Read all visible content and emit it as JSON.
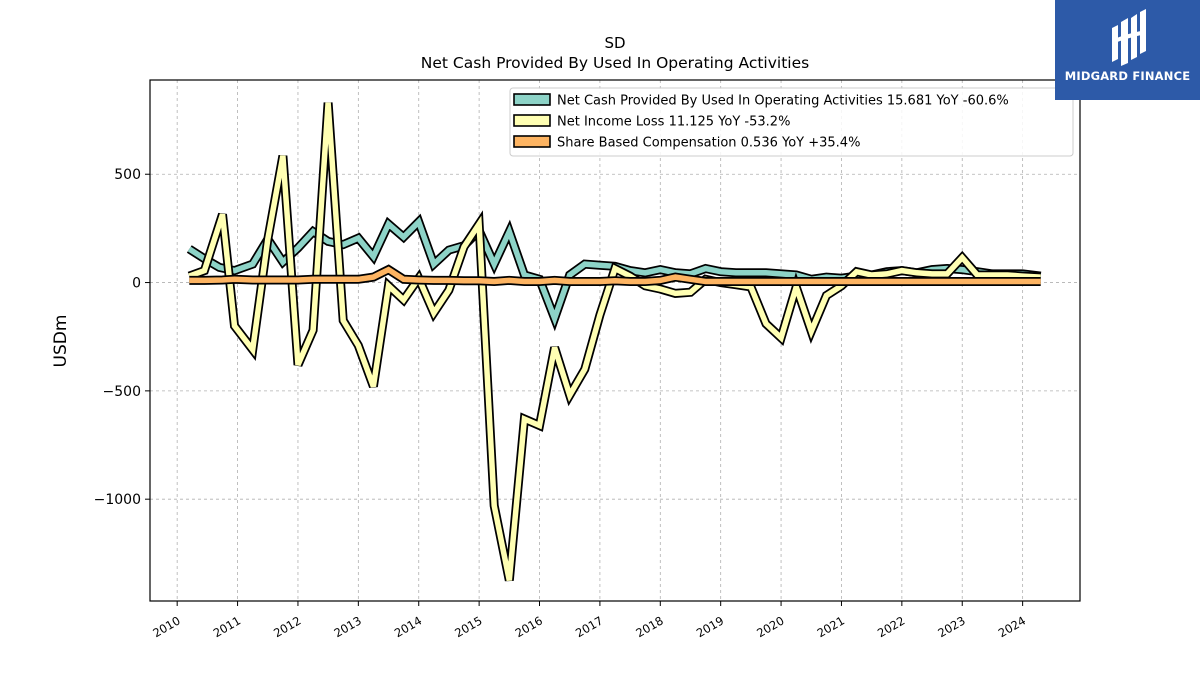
{
  "brand": {
    "name": "MIDGARD FINANCE",
    "bg_color": "#2d5aa8"
  },
  "chart_data": {
    "type": "line",
    "title": "SD",
    "subtitle": "Net Cash Provided By Used In Operating Activities",
    "ylabel": "USDm",
    "xlabel": "",
    "xlim": [
      2009.55,
      2024.95
    ],
    "ylim": [
      -1470,
      935
    ],
    "yticks": [
      500,
      0,
      -500,
      -1000
    ],
    "ytick_labels": [
      "500",
      "0",
      "−500",
      "−1000"
    ],
    "xticks": [
      2010,
      2011,
      2012,
      2013,
      2014,
      2015,
      2016,
      2017,
      2018,
      2019,
      2020,
      2021,
      2022,
      2023,
      2024
    ],
    "xtick_labels": [
      "2010",
      "2011",
      "2012",
      "2013",
      "2014",
      "2015",
      "2016",
      "2017",
      "2018",
      "2019",
      "2020",
      "2021",
      "2022",
      "2023",
      "2024"
    ],
    "grid": true,
    "legend_position": "top-right",
    "series": [
      {
        "name": "Net Cash Provided By Used In Operating Activities",
        "legend_label": "Net Cash Provided By Used In Operating Activities  15.681 YoY -60.6%",
        "color": "#8dd3c7",
        "points": [
          [
            2010.2,
            155
          ],
          [
            2010.45,
            110
          ],
          [
            2010.7,
            70
          ],
          [
            2010.95,
            55
          ],
          [
            2011.25,
            85
          ],
          [
            2011.5,
            200
          ],
          [
            2011.75,
            95
          ],
          [
            2012.0,
            160
          ],
          [
            2012.25,
            235
          ],
          [
            2012.5,
            190
          ],
          [
            2012.75,
            175
          ],
          [
            2013.0,
            205
          ],
          [
            2013.25,
            120
          ],
          [
            2013.5,
            270
          ],
          [
            2013.75,
            210
          ],
          [
            2014.0,
            280
          ],
          [
            2014.25,
            85
          ],
          [
            2014.5,
            150
          ],
          [
            2014.75,
            170
          ],
          [
            2015.0,
            240
          ],
          [
            2015.25,
            85
          ],
          [
            2015.5,
            235
          ],
          [
            2015.75,
            35
          ],
          [
            2016.0,
            15
          ],
          [
            2016.25,
            -165
          ],
          [
            2016.5,
            35
          ],
          [
            2016.75,
            85
          ],
          [
            2017.0,
            80
          ],
          [
            2017.25,
            75
          ],
          [
            2017.5,
            55
          ],
          [
            2017.75,
            45
          ],
          [
            2018.0,
            60
          ],
          [
            2018.25,
            45
          ],
          [
            2018.5,
            40
          ],
          [
            2018.75,
            65
          ],
          [
            2019.0,
            50
          ],
          [
            2019.25,
            45
          ],
          [
            2019.5,
            45
          ],
          [
            2019.75,
            45
          ],
          [
            2020.0,
            40
          ],
          [
            2020.25,
            35
          ],
          [
            2020.5,
            15
          ],
          [
            2020.75,
            25
          ],
          [
            2021.0,
            20
          ],
          [
            2021.25,
            30
          ],
          [
            2021.5,
            35
          ],
          [
            2021.75,
            50
          ],
          [
            2022.0,
            55
          ],
          [
            2022.25,
            45
          ],
          [
            2022.5,
            60
          ],
          [
            2022.75,
            65
          ],
          [
            2023.0,
            60
          ],
          [
            2023.25,
            50
          ],
          [
            2023.5,
            40
          ],
          [
            2023.75,
            40
          ],
          [
            2024.0,
            40
          ],
          [
            2024.3,
            30
          ]
        ]
      },
      {
        "name": "Net Income Loss",
        "legend_label": "Net Income Loss  11.125 YoY -53.2%",
        "color": "#ffffb3",
        "points": [
          [
            2010.2,
            30
          ],
          [
            2010.45,
            55
          ],
          [
            2010.75,
            315
          ],
          [
            2010.95,
            -200
          ],
          [
            2011.25,
            -310
          ],
          [
            2011.5,
            200
          ],
          [
            2011.75,
            585
          ],
          [
            2012.0,
            -380
          ],
          [
            2012.25,
            -220
          ],
          [
            2012.5,
            830
          ],
          [
            2012.75,
            -175
          ],
          [
            2013.0,
            -290
          ],
          [
            2013.25,
            -480
          ],
          [
            2013.5,
            -15
          ],
          [
            2013.75,
            -80
          ],
          [
            2014.0,
            20
          ],
          [
            2014.25,
            -140
          ],
          [
            2014.5,
            -35
          ],
          [
            2014.75,
            165
          ],
          [
            2015.0,
            270
          ],
          [
            2015.25,
            -1030
          ],
          [
            2015.5,
            -1375
          ],
          [
            2015.75,
            -630
          ],
          [
            2016.0,
            -660
          ],
          [
            2016.25,
            -300
          ],
          [
            2016.5,
            -520
          ],
          [
            2016.75,
            -400
          ],
          [
            2017.0,
            -150
          ],
          [
            2017.25,
            65
          ],
          [
            2017.5,
            30
          ],
          [
            2017.75,
            -15
          ],
          [
            2018.0,
            -30
          ],
          [
            2018.25,
            -50
          ],
          [
            2018.5,
            -45
          ],
          [
            2018.75,
            15
          ],
          [
            2019.0,
            0
          ],
          [
            2019.25,
            -10
          ],
          [
            2019.5,
            -20
          ],
          [
            2019.75,
            -190
          ],
          [
            2020.0,
            -255
          ],
          [
            2020.25,
            -20
          ],
          [
            2020.5,
            -225
          ],
          [
            2020.75,
            -60
          ],
          [
            2021.0,
            -15
          ],
          [
            2021.25,
            50
          ],
          [
            2021.5,
            35
          ],
          [
            2021.75,
            40
          ],
          [
            2022.0,
            55
          ],
          [
            2022.25,
            45
          ],
          [
            2022.5,
            40
          ],
          [
            2022.75,
            40
          ],
          [
            2023.0,
            115
          ],
          [
            2023.25,
            35
          ],
          [
            2023.5,
            35
          ],
          [
            2023.75,
            35
          ],
          [
            2024.0,
            30
          ],
          [
            2024.3,
            25
          ]
        ]
      },
      {
        "name": "Share Based Compensation",
        "legend_label": "Share Based Compensation  0.536 YoY +35.4%",
        "color": "#fdb462",
        "points": [
          [
            2010.2,
            10
          ],
          [
            2010.45,
            10
          ],
          [
            2010.75,
            12
          ],
          [
            2010.95,
            15
          ],
          [
            2011.25,
            12
          ],
          [
            2011.5,
            12
          ],
          [
            2011.75,
            12
          ],
          [
            2012.0,
            12
          ],
          [
            2012.25,
            15
          ],
          [
            2012.5,
            15
          ],
          [
            2012.75,
            15
          ],
          [
            2013.0,
            15
          ],
          [
            2013.25,
            25
          ],
          [
            2013.5,
            60
          ],
          [
            2013.75,
            15
          ],
          [
            2014.0,
            12
          ],
          [
            2014.25,
            10
          ],
          [
            2014.5,
            10
          ],
          [
            2014.75,
            8
          ],
          [
            2015.0,
            8
          ],
          [
            2015.25,
            5
          ],
          [
            2015.5,
            10
          ],
          [
            2015.75,
            5
          ],
          [
            2016.0,
            5
          ],
          [
            2016.25,
            10
          ],
          [
            2016.5,
            5
          ],
          [
            2016.75,
            5
          ],
          [
            2017.0,
            5
          ],
          [
            2017.25,
            8
          ],
          [
            2017.5,
            5
          ],
          [
            2017.75,
            5
          ],
          [
            2018.0,
            10
          ],
          [
            2018.25,
            25
          ],
          [
            2018.5,
            15
          ],
          [
            2018.75,
            5
          ],
          [
            2019.0,
            5
          ],
          [
            2019.25,
            5
          ],
          [
            2019.5,
            5
          ],
          [
            2019.75,
            5
          ],
          [
            2020.0,
            5
          ],
          [
            2020.25,
            5
          ],
          [
            2020.5,
            5
          ],
          [
            2020.75,
            5
          ],
          [
            2021.0,
            5
          ],
          [
            2021.25,
            5
          ],
          [
            2021.5,
            5
          ],
          [
            2021.75,
            5
          ],
          [
            2022.0,
            5
          ],
          [
            2022.25,
            5
          ],
          [
            2022.5,
            5
          ],
          [
            2022.75,
            5
          ],
          [
            2023.0,
            5
          ],
          [
            2023.25,
            5
          ],
          [
            2023.5,
            5
          ],
          [
            2023.75,
            5
          ],
          [
            2024.0,
            5
          ],
          [
            2024.3,
            5
          ]
        ]
      }
    ]
  }
}
